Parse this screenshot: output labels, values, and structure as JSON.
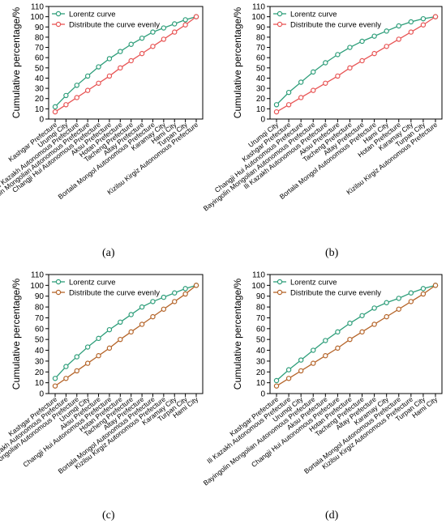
{
  "chart_data": [
    {
      "panel": "(a)",
      "type": "line",
      "ylabel": "Cumulative percentage/%",
      "ylim": [
        0,
        110
      ],
      "yticks": [
        0,
        10,
        20,
        30,
        40,
        50,
        60,
        70,
        80,
        90,
        100,
        110
      ],
      "categories": [
        "Kashgar Prefecture",
        "Urumqi City",
        "Ili Kazakh Autonomous Prefecture",
        "Bayingolin Mongolian Autonomous Prefecture",
        "Changji Hui Autonomous Prefecture",
        "Aksu Prefecture",
        "Hotan Prefecture",
        "Tacheng Prefecture",
        "Altay Prefecture",
        "Bortala Mongol Autonomous Prefecture",
        "Karamay City",
        "Hami City",
        "Turpan City",
        "Kizilsu Kirgiz Autonomous Prefecture"
      ],
      "series": [
        {
          "name": "Lorentz curve",
          "color": "#2e9e7a",
          "values": [
            12,
            23,
            33,
            42,
            51,
            59,
            66,
            73,
            79,
            85,
            89,
            93,
            97,
            100
          ]
        },
        {
          "name": "Distribute the curve evenly",
          "color": "#e85555",
          "values": [
            7,
            14,
            21,
            28,
            35,
            42,
            50,
            57,
            64,
            71,
            78,
            85,
            92,
            100
          ]
        }
      ],
      "legend": "top-left"
    },
    {
      "panel": "(b)",
      "type": "line",
      "ylabel": "Cumulative percentage/%",
      "ylim": [
        0,
        110
      ],
      "yticks": [
        0,
        10,
        20,
        30,
        40,
        50,
        60,
        70,
        80,
        90,
        100,
        110
      ],
      "categories": [
        "Urumqi City",
        "Kashgar Prefecture",
        "Changji Hui Autonomous Prefecture",
        "Bayingolin Mongolian Autonomous Prefecture",
        "Ili Kazakh Autonomous Prefecture",
        "Aksu Prefecture",
        "Tacheng Prefecture",
        "Altay Prefecture",
        "Bortala Mongol Autonomous Prefecture",
        "Hami City",
        "Hotan Prefecture",
        "Karamay City",
        "Turpan City",
        "Kizilsu Kirgiz Autonomous Prefecture"
      ],
      "series": [
        {
          "name": "Lorentz curve",
          "color": "#2e9e7a",
          "values": [
            14,
            26,
            36,
            46,
            55,
            63,
            70,
            76,
            81,
            86,
            91,
            95,
            98,
            100
          ]
        },
        {
          "name": "Distribute the curve evenly",
          "color": "#e85555",
          "values": [
            7,
            14,
            21,
            28,
            35,
            42,
            50,
            57,
            64,
            71,
            78,
            85,
            92,
            100
          ]
        }
      ],
      "legend": "top-left"
    },
    {
      "panel": "(c)",
      "type": "line",
      "ylabel": "Cumulative percentage/%",
      "ylim": [
        0,
        110
      ],
      "yticks": [
        0,
        10,
        20,
        30,
        40,
        50,
        60,
        70,
        80,
        90,
        100,
        110
      ],
      "categories": [
        "Kashgar Prefecture",
        "Ili Kazakh Autonomous Prefecture",
        "Bayingolin Mongolian Autonomous Prefecture",
        "Urumqi City",
        "Aksu Prefecture",
        "Changji Hui Autonomous Prefecture",
        "Hotan Prefecture",
        "Tacheng Prefecture",
        "Altay Prefecture",
        "Bortala Mongol Autonomous Prefecture",
        "Kizilsu Kirgiz Autonomous Prefecture",
        "Karamay City",
        "Turpan City",
        "Hami City"
      ],
      "series": [
        {
          "name": "Lorentz curve",
          "color": "#2e9e7a",
          "values": [
            14,
            25,
            34,
            43,
            51,
            59,
            66,
            73,
            80,
            85,
            89,
            93,
            97,
            100
          ]
        },
        {
          "name": "Distribute the curve evenly",
          "color": "#b5652a",
          "values": [
            7,
            14,
            21,
            28,
            35,
            42,
            50,
            57,
            64,
            71,
            78,
            85,
            92,
            100
          ]
        }
      ],
      "legend": "top-left"
    },
    {
      "panel": "(d)",
      "type": "line",
      "ylabel": "Cumulative percentage/%",
      "ylim": [
        0,
        110
      ],
      "yticks": [
        0,
        10,
        20,
        30,
        40,
        50,
        60,
        70,
        80,
        90,
        100,
        110
      ],
      "categories": [
        "Kashgar Prefecture",
        "Ili Kazakh Autonomous Prefecture",
        "Urumqi City",
        "Bayingolin Mongolian Autonomous Prefecture",
        "Aksu Prefecture",
        "Changji Hui Autonomous Prefecture",
        "Hotan Prefecture",
        "Tacheng Prefecture",
        "Altay Prefecture",
        "Karamay City",
        "Bortala Mongol Autonomous Prefecture",
        "Kizilsu Kirgiz Autonomous Prefecture",
        "Turpan City",
        "Hami City"
      ],
      "series": [
        {
          "name": "Lorentz curve",
          "color": "#2e9e7a",
          "values": [
            12,
            22,
            31,
            40,
            49,
            57,
            65,
            72,
            79,
            84,
            88,
            93,
            97,
            100
          ]
        },
        {
          "name": "Distribute the curve evenly",
          "color": "#b5652a",
          "values": [
            7,
            14,
            21,
            28,
            35,
            42,
            50,
            57,
            64,
            71,
            78,
            85,
            92,
            100
          ]
        }
      ],
      "legend": "top-left"
    }
  ]
}
